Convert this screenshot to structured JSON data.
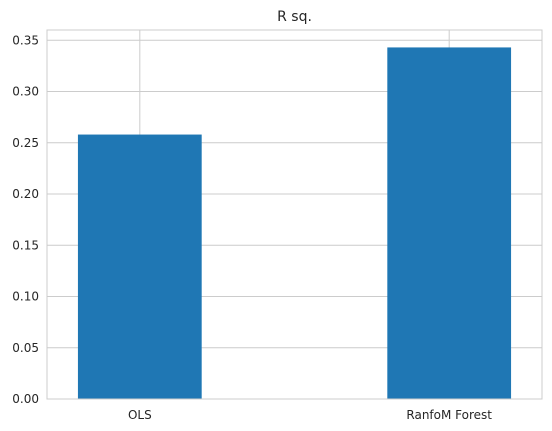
{
  "chart_data": {
    "type": "bar",
    "title": "R sq.",
    "xlabel": "",
    "ylabel": "",
    "categories": [
      "OLS",
      "RanfoM Forest"
    ],
    "values": [
      0.258,
      0.343
    ],
    "ylim": [
      0,
      0.36
    ],
    "yticks": [
      0.0,
      0.05,
      0.1,
      0.15,
      0.2,
      0.25,
      0.3,
      0.35
    ],
    "ytick_labels": [
      "0.00",
      "0.05",
      "0.10",
      "0.15",
      "0.20",
      "0.25",
      "0.30",
      "0.35"
    ],
    "grid": true,
    "bar_color": "#1f77b4",
    "grid_color": "#cccccc",
    "axes_edge_color": "#cccccc"
  }
}
